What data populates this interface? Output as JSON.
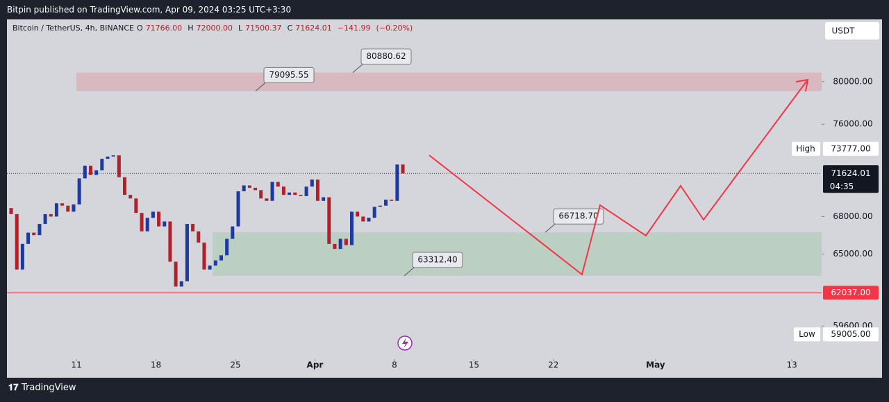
{
  "header": {
    "text": "Bitpin published on TradingView.com, Apr 09, 2024 03:25 UTC+3:30"
  },
  "footer": {
    "brand": "TradingView"
  },
  "chart_data": {
    "type": "candlestick",
    "title": "Bitcoin / TetherUS, 4h, BINANCE",
    "currency": "USDT",
    "legend": [
      {
        "key": "O",
        "value": 71766,
        "label": "71766.00"
      },
      {
        "key": "H",
        "value": 72000,
        "label": "72000.00"
      },
      {
        "key": "L",
        "value": 71500.37,
        "label": "71500.37"
      },
      {
        "key": "C",
        "value": 71624.01,
        "label": "71624.01"
      }
    ],
    "change": {
      "value": -141.99,
      "label": "−141.99"
    },
    "change_pct": {
      "value": -0.2,
      "label": "(−0.20%)"
    },
    "up_color": "#1e3a9e",
    "down_color": "#b2202a",
    "log_scale": true,
    "xlim": [
      "2024-03-04T21:00",
      "2024-05-15T15:00"
    ],
    "ylim": [
      57660,
      86230
    ],
    "xticks": [
      {
        "value": "2024-03-11",
        "label": "11"
      },
      {
        "value": "2024-03-18",
        "label": "18"
      },
      {
        "value": "2024-03-25",
        "label": "25"
      },
      {
        "value": "2024-04-01",
        "label": "Apr"
      },
      {
        "value": "2024-04-08",
        "label": "8"
      },
      {
        "value": "2024-04-15",
        "label": "15"
      },
      {
        "value": "2024-04-22",
        "label": "22"
      },
      {
        "value": "2024-05-01",
        "label": "May"
      },
      {
        "value": "2024-05-13",
        "label": "13"
      }
    ],
    "yticks": [
      {
        "value": 59600,
        "label": "59600.00"
      },
      {
        "value": 65000,
        "label": "65000.00"
      },
      {
        "value": 68000,
        "label": "68000.00"
      },
      {
        "value": 76000,
        "label": "76000.00"
      },
      {
        "value": 80000,
        "label": "80000.00"
      }
    ],
    "x": [
      "2024-03-05T00:00",
      "2024-03-05T12:00",
      "2024-03-06T00:00",
      "2024-03-06T12:00",
      "2024-03-07T00:00",
      "2024-03-07T12:00",
      "2024-03-08T00:00",
      "2024-03-08T12:00",
      "2024-03-09T00:00",
      "2024-03-09T12:00",
      "2024-03-10T00:00",
      "2024-03-10T12:00",
      "2024-03-11T00:00",
      "2024-03-11T12:00",
      "2024-03-12T00:00",
      "2024-03-12T12:00",
      "2024-03-13T00:00",
      "2024-03-13T12:00",
      "2024-03-14T00:00",
      "2024-03-14T12:00",
      "2024-03-15T00:00",
      "2024-03-15T12:00",
      "2024-03-16T00:00",
      "2024-03-16T12:00",
      "2024-03-17T00:00",
      "2024-03-17T12:00",
      "2024-03-18T00:00",
      "2024-03-18T12:00",
      "2024-03-19T00:00",
      "2024-03-19T12:00",
      "2024-03-20T00:00",
      "2024-03-20T12:00",
      "2024-03-21T00:00",
      "2024-03-21T12:00",
      "2024-03-22T00:00",
      "2024-03-22T12:00",
      "2024-03-23T00:00",
      "2024-03-23T12:00",
      "2024-03-24T00:00",
      "2024-03-24T12:00",
      "2024-03-25T00:00",
      "2024-03-25T12:00",
      "2024-03-26T00:00",
      "2024-03-26T12:00",
      "2024-03-27T00:00",
      "2024-03-27T12:00",
      "2024-03-28T00:00",
      "2024-03-28T12:00",
      "2024-03-29T00:00",
      "2024-03-29T12:00",
      "2024-03-30T00:00",
      "2024-03-30T12:00",
      "2024-03-31T00:00",
      "2024-03-31T12:00",
      "2024-04-01T00:00",
      "2024-04-01T12:00",
      "2024-04-02T00:00",
      "2024-04-02T12:00",
      "2024-04-03T00:00",
      "2024-04-03T12:00",
      "2024-04-04T00:00",
      "2024-04-04T12:00",
      "2024-04-05T00:00",
      "2024-04-05T12:00",
      "2024-04-06T00:00",
      "2024-04-06T12:00",
      "2024-04-07T00:00",
      "2024-04-07T12:00",
      "2024-04-08T00:00",
      "2024-04-08T12:00"
    ],
    "open": [
      68700,
      68200,
      63800,
      65800,
      66700,
      66500,
      67400,
      68200,
      68000,
      69100,
      68900,
      68400,
      69000,
      71200,
      72300,
      71500,
      71900,
      72900,
      73100,
      73200,
      71300,
      69800,
      69500,
      68300,
      66800,
      67900,
      68400,
      67200,
      67600,
      64400,
      62500,
      62900,
      67400,
      66800,
      65900,
      63800,
      64100,
      64500,
      64900,
      66200,
      67200,
      70100,
      70600,
      70400,
      70200,
      69500,
      69300,
      70900,
      70500,
      69800,
      70000,
      69800,
      69700,
      70500,
      71100,
      69300,
      69600,
      65800,
      65400,
      66200,
      65700,
      68400,
      68000,
      67600,
      67900,
      68800,
      68900,
      69400,
      69300,
      72400
    ],
    "high": {
      "name": "High",
      "value": 73777,
      "label": "73777.00"
    },
    "low": {
      "name": "Low",
      "value": 59005,
      "label": "59005.00"
    },
    "close": [
      68200,
      63800,
      65800,
      66700,
      66500,
      67400,
      68200,
      68000,
      69100,
      68900,
      68400,
      69000,
      71200,
      72300,
      71500,
      71900,
      72900,
      73100,
      73200,
      71300,
      69800,
      69500,
      68300,
      66800,
      67900,
      68400,
      67200,
      67600,
      64400,
      62500,
      62900,
      67400,
      66800,
      65900,
      63800,
      64100,
      64500,
      64900,
      66200,
      67200,
      70100,
      70600,
      70400,
      70200,
      69500,
      69300,
      70900,
      70500,
      69800,
      70000,
      69800,
      69700,
      70500,
      71100,
      69300,
      69600,
      65800,
      65400,
      66200,
      65700,
      68400,
      68000,
      67600,
      67900,
      68800,
      68900,
      69400,
      69300,
      72400,
      71624.01
    ],
    "zones": [
      {
        "from": 79095.55,
        "to": 80880.62,
        "color": "rgba(242,54,69,0.18)"
      },
      {
        "from": 63312.4,
        "to": 66718.7,
        "color": "rgba(76,175,80,0.18)"
      }
    ],
    "annotations": [
      {
        "value": 79095.55,
        "label": "79095.55"
      },
      {
        "value": 80880.62,
        "label": "80880.62"
      },
      {
        "value": 66718.7,
        "label": "66718.70"
      },
      {
        "value": 63312.4,
        "label": "63312.40"
      }
    ],
    "support_line": {
      "value": 62037,
      "label": "62037.00",
      "color": "#f23645"
    },
    "last_price": {
      "value": 71624.01,
      "label": "71624.01",
      "countdown": "04:35"
    }
  }
}
